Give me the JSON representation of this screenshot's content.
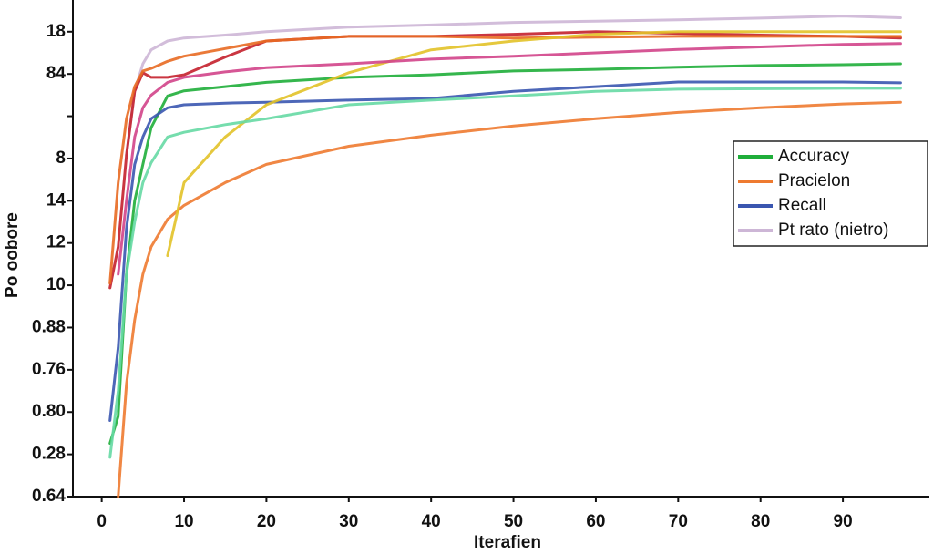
{
  "chart_data": {
    "type": "line",
    "xlabel": "Iterafien",
    "ylabel": "Po oobore",
    "x": [
      1,
      2,
      3,
      4,
      5,
      6,
      8,
      10,
      15,
      20,
      30,
      40,
      50,
      60,
      70,
      80,
      90,
      97
    ],
    "xlim": [
      -3.5,
      100.5
    ],
    "xticks": [
      0,
      10,
      20,
      30,
      40,
      50,
      60,
      70,
      80,
      90
    ],
    "ylim": [
      0,
      11.75
    ],
    "yticks": [
      {
        "value": 0,
        "label": "0.64"
      },
      {
        "value": 1,
        "label": "0.28"
      },
      {
        "value": 2,
        "label": "0.80"
      },
      {
        "value": 3,
        "label": "0.76"
      },
      {
        "value": 4,
        "label": "0.88"
      },
      {
        "value": 5,
        "label": "10"
      },
      {
        "value": 6,
        "label": "12"
      },
      {
        "value": 7,
        "label": "14"
      },
      {
        "value": 8,
        "label": "8"
      },
      {
        "value": 9,
        "label": null
      },
      {
        "value": 10,
        "label": "84"
      },
      {
        "value": 11,
        "label": "18"
      }
    ],
    "legend": "right",
    "series": [
      {
        "name": "Accuracy",
        "color": "#1fae3a",
        "values": [
          1.26,
          1.9,
          5.26,
          7.0,
          7.86,
          8.73,
          9.48,
          9.6,
          9.7,
          9.8,
          9.92,
          9.98,
          10.07,
          10.11,
          10.16,
          10.2,
          10.22,
          10.24
        ]
      },
      {
        "name": "Pracielon",
        "color": "#ee7a30",
        "values": [
          null,
          0,
          2.66,
          4.18,
          5.26,
          5.91,
          6.56,
          6.89,
          7.43,
          7.86,
          8.29,
          8.55,
          8.77,
          8.94,
          9.09,
          9.2,
          9.29,
          9.33
        ]
      },
      {
        "name": "Recall",
        "color": "#3a56b0",
        "values": [
          1.8,
          3.53,
          6.34,
          7.86,
          8.51,
          8.94,
          9.2,
          9.27,
          9.31,
          9.33,
          9.38,
          9.42,
          9.59,
          9.7,
          9.81,
          9.81,
          9.81,
          9.79
        ]
      },
      {
        "name": "Pt rato (nietro)",
        "color": "#cdb6d6",
        "values": [
          null,
          null,
          8.08,
          9.59,
          10.24,
          10.57,
          10.78,
          10.85,
          10.92,
          11.0,
          11.11,
          11.16,
          11.22,
          11.25,
          11.28,
          11.32,
          11.37,
          11.33
        ]
      },
      {
        "color": "#c4202c",
        "values": [
          4.94,
          5.91,
          8.08,
          9.59,
          10.03,
          9.92,
          9.92,
          9.98,
          10.4,
          10.78,
          10.89,
          10.89,
          10.94,
          11.0,
          10.96,
          10.92,
          10.89,
          10.85
        ]
      },
      {
        "color": "#e86a22",
        "values": [
          5.05,
          7.43,
          8.94,
          9.7,
          10.07,
          10.13,
          10.3,
          10.42,
          10.6,
          10.78,
          10.89,
          10.89,
          10.85,
          10.87,
          10.89,
          10.89,
          10.89,
          10.89
        ]
      },
      {
        "color": "#e2c228",
        "values": [
          null,
          null,
          null,
          null,
          null,
          null,
          5.7,
          7.43,
          8.51,
          9.27,
          10.03,
          10.57,
          10.78,
          10.94,
          11.0,
          11.0,
          11.0,
          11.0
        ]
      },
      {
        "color": "#66d9a4",
        "values": [
          0.93,
          2.5,
          5.26,
          6.5,
          7.43,
          7.9,
          8.51,
          8.62,
          8.8,
          8.94,
          9.27,
          9.38,
          9.48,
          9.59,
          9.64,
          9.65,
          9.66,
          9.66
        ]
      },
      {
        "color": "#d2448a",
        "values": [
          null,
          5.26,
          7.0,
          8.51,
          9.2,
          9.5,
          9.8,
          9.92,
          10.05,
          10.15,
          10.24,
          10.35,
          10.42,
          10.5,
          10.58,
          10.64,
          10.7,
          10.72
        ]
      }
    ]
  }
}
